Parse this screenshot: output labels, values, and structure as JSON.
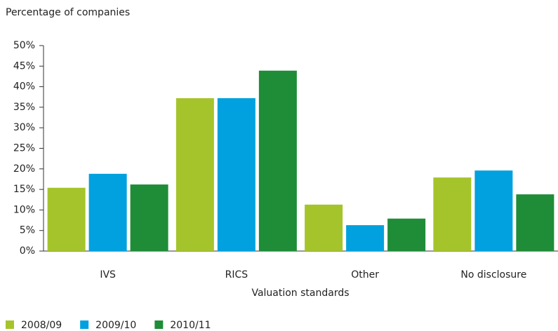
{
  "chart_data": {
    "type": "bar",
    "y_axis_label": "Percentage of companies",
    "x_axis_label": "Valuation standards",
    "categories": [
      "IVS",
      "RICS",
      "Other",
      "No disclosure"
    ],
    "series": [
      {
        "name": "2008/09",
        "color": "#a5c42b",
        "values": [
          15.4,
          37.2,
          11.3,
          17.9
        ]
      },
      {
        "name": "2009/10",
        "color": "#00a1de",
        "values": [
          18.8,
          37.2,
          6.3,
          19.6
        ]
      },
      {
        "name": "2010/11",
        "color": "#1f8c38",
        "values": [
          16.2,
          43.9,
          7.9,
          13.8
        ]
      }
    ],
    "ylim": [
      0,
      50
    ],
    "yticks": [
      {
        "value": 0,
        "label": "0%"
      },
      {
        "value": 5,
        "label": "5%"
      },
      {
        "value": 10,
        "label": "10%"
      },
      {
        "value": 15,
        "label": "15%"
      },
      {
        "value": 20,
        "label": "20%"
      },
      {
        "value": 25,
        "label": "25%"
      },
      {
        "value": 30,
        "label": "30%"
      },
      {
        "value": 35,
        "label": "35%"
      },
      {
        "value": 40,
        "label": "40%"
      },
      {
        "value": 45,
        "label": "45%"
      },
      {
        "value": 50,
        "label": "50%"
      }
    ],
    "grid": false,
    "legend": "bottom-left"
  }
}
